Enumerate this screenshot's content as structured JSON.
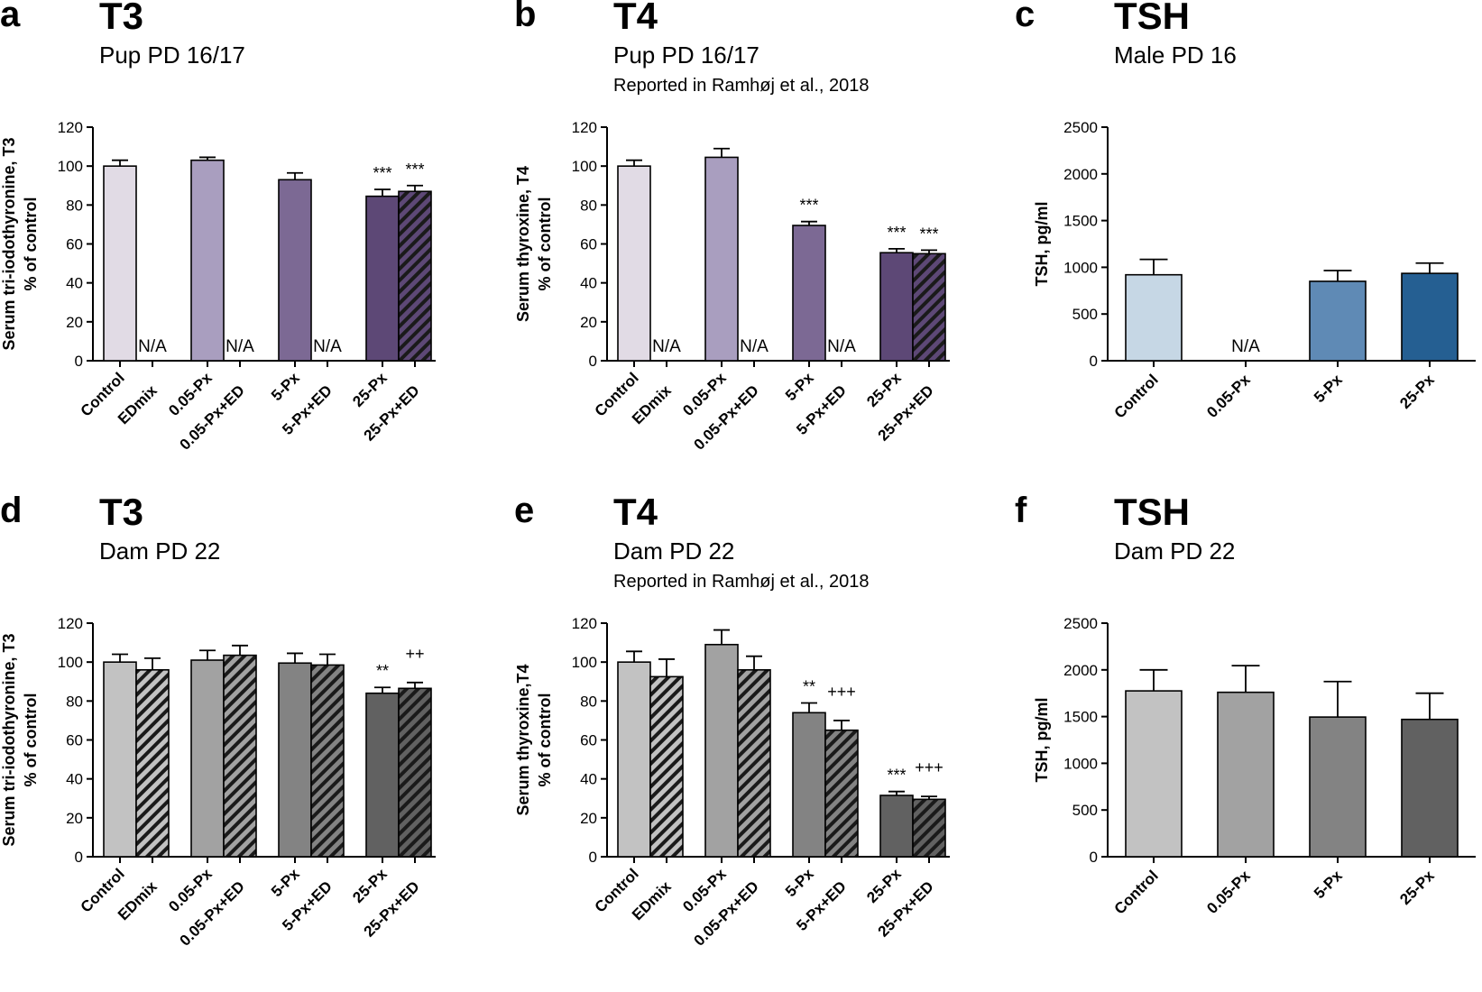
{
  "chart_data": [
    {
      "id": "a",
      "type": "bar",
      "letter": "a",
      "title": "T3",
      "subtitle": "Pup PD 16/17",
      "note": "",
      "ylabel": [
        "Serum tri-iodothyronine, T3",
        "% of control"
      ],
      "ylim": [
        0,
        120
      ],
      "yticks": [
        0,
        20,
        40,
        60,
        80,
        100,
        120
      ],
      "categories": [
        "Control",
        "EDmix",
        "0.05-Px",
        "0.05-Px+ED",
        "5-Px",
        "5-Px+ED",
        "25-Px",
        "25-Px+ED"
      ],
      "values": [
        100,
        null,
        103,
        null,
        93,
        null,
        84.5,
        87
      ],
      "errors": [
        3,
        null,
        1.5,
        null,
        3.5,
        null,
        3.5,
        3
      ],
      "annotations": [
        "",
        "N/A",
        "",
        "N/A",
        "",
        "N/A",
        "***",
        "***"
      ],
      "colors": [
        "#e1dbe5",
        "#e1dbe5",
        "#a99ebf",
        "#a99ebf",
        "#7c6994",
        "#7c6994",
        "#5d4876",
        "#5d4876"
      ],
      "hatched": [
        false,
        true,
        false,
        true,
        false,
        true,
        false,
        true
      ]
    },
    {
      "id": "b",
      "type": "bar",
      "letter": "b",
      "title": "T4",
      "subtitle": "Pup PD 16/17",
      "note": "Reported in Ramhøj et al., 2018",
      "ylabel": [
        "Serum thyroxine, T4",
        "% of control"
      ],
      "ylim": [
        0,
        120
      ],
      "yticks": [
        0,
        20,
        40,
        60,
        80,
        100,
        120
      ],
      "categories": [
        "Control",
        "EDmix",
        "0.05-Px",
        "0.05-Px+ED",
        "5-Px",
        "5-Px+ED",
        "25-Px",
        "25-Px+ED"
      ],
      "values": [
        100,
        null,
        104.5,
        null,
        69.5,
        null,
        55.5,
        55
      ],
      "errors": [
        3,
        null,
        4.5,
        null,
        2,
        null,
        2,
        1.8
      ],
      "annotations": [
        "",
        "N/A",
        "",
        "N/A",
        "***",
        "N/A",
        "***",
        "***"
      ],
      "colors": [
        "#e1dbe5",
        "#e1dbe5",
        "#a99ebf",
        "#a99ebf",
        "#7c6994",
        "#7c6994",
        "#5d4876",
        "#5d4876"
      ],
      "hatched": [
        false,
        true,
        false,
        true,
        false,
        true,
        false,
        true
      ]
    },
    {
      "id": "c",
      "type": "bar",
      "letter": "c",
      "title": "TSH",
      "subtitle": "Male PD 16",
      "note": "",
      "ylabel": [
        "TSH, pg/ml"
      ],
      "ylim": [
        0,
        2500
      ],
      "yticks": [
        0,
        500,
        1000,
        1500,
        2000,
        2500
      ],
      "categories": [
        "Control",
        "0.05-Px",
        "5-Px",
        "25-Px"
      ],
      "values": [
        920,
        null,
        850,
        935
      ],
      "errors": [
        165,
        null,
        115,
        110
      ],
      "annotations": [
        "",
        "N/A",
        "",
        ""
      ],
      "colors": [
        "#c6d7e5",
        "#c6d7e5",
        "#5f8ab5",
        "#255f92"
      ],
      "hatched": [
        false,
        false,
        false,
        false
      ]
    },
    {
      "id": "d",
      "type": "bar",
      "letter": "d",
      "title": "T3",
      "subtitle": "Dam PD 22",
      "note": "",
      "ylabel": [
        "Serum tri-iodothyronine, T3",
        "% of control"
      ],
      "ylim": [
        0,
        120
      ],
      "yticks": [
        0,
        20,
        40,
        60,
        80,
        100,
        120
      ],
      "categories": [
        "Control",
        "EDmix",
        "0.05-Px",
        "0.05-Px+ED",
        "5-Px",
        "5-Px+ED",
        "25-Px",
        "25-Px+ED"
      ],
      "values": [
        100,
        96,
        101,
        103.5,
        99.5,
        98.5,
        84,
        86.5
      ],
      "errors": [
        4,
        6,
        5,
        5,
        5,
        5.5,
        3,
        3
      ],
      "annotations": [
        "",
        "",
        "",
        "",
        "",
        "",
        "**",
        "++"
      ],
      "colors": [
        "#c2c2c2",
        "#c2c2c2",
        "#a2a2a2",
        "#a2a2a2",
        "#838383",
        "#838383",
        "#616161",
        "#616161"
      ],
      "hatched": [
        false,
        true,
        false,
        true,
        false,
        true,
        false,
        true
      ]
    },
    {
      "id": "e",
      "type": "bar",
      "letter": "e",
      "title": "T4",
      "subtitle": "Dam PD 22",
      "note": "Reported in Ramhøj et al., 2018",
      "ylabel": [
        "Serum thyroxine,T4",
        "% of control"
      ],
      "ylim": [
        0,
        120
      ],
      "yticks": [
        0,
        20,
        40,
        60,
        80,
        100,
        120
      ],
      "categories": [
        "Control",
        "EDmix",
        "0.05-Px",
        "0.05-Px+ED",
        "5-Px",
        "5-Px+ED",
        "25-Px",
        "25-Px+ED"
      ],
      "values": [
        100,
        92.5,
        109,
        96,
        74,
        65,
        31.5,
        29.5
      ],
      "errors": [
        5.5,
        9,
        7.5,
        7,
        5,
        5,
        2,
        1.5
      ],
      "annotations": [
        "",
        "",
        "",
        "",
        "**",
        "+++",
        "***",
        "+++"
      ],
      "colors": [
        "#c2c2c2",
        "#c2c2c2",
        "#a2a2a2",
        "#a2a2a2",
        "#838383",
        "#838383",
        "#616161",
        "#616161"
      ],
      "hatched": [
        false,
        true,
        false,
        true,
        false,
        true,
        false,
        true
      ]
    },
    {
      "id": "f",
      "type": "bar",
      "letter": "f",
      "title": "TSH",
      "subtitle": "Dam PD 22",
      "note": "",
      "ylabel": [
        "TSH, pg/ml"
      ],
      "ylim": [
        0,
        2500
      ],
      "yticks": [
        0,
        500,
        1000,
        1500,
        2000,
        2500
      ],
      "categories": [
        "Control",
        "0.05-Px",
        "5-Px",
        "25-Px"
      ],
      "values": [
        1775,
        1760,
        1495,
        1470
      ],
      "errors": [
        225,
        285,
        380,
        280
      ],
      "annotations": [
        "",
        "",
        "",
        ""
      ],
      "colors": [
        "#c2c2c2",
        "#a2a2a2",
        "#838383",
        "#616161"
      ],
      "hatched": [
        false,
        false,
        false,
        false
      ]
    }
  ]
}
